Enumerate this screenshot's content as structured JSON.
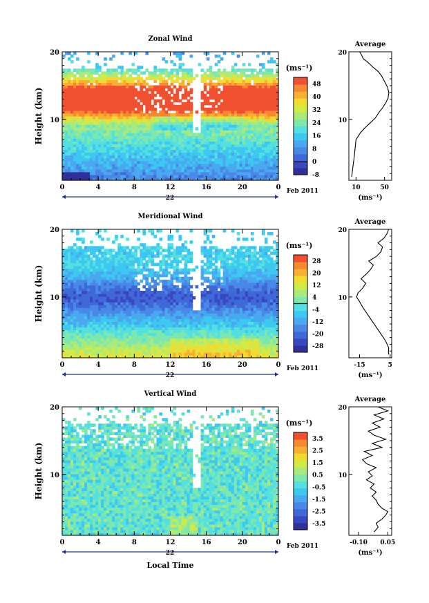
{
  "figure": {
    "date_label": "Feb 2011",
    "day_label": "22",
    "xlabel_bottom": "Local Time"
  },
  "chart_data": [
    {
      "type": "heatmap",
      "title": "Zonal Wind",
      "ylabel": "Height (km)",
      "xlim": [
        0,
        24
      ],
      "ylim": [
        1,
        20
      ],
      "x_ticks": [
        "0",
        "4",
        "8",
        "12",
        "16",
        "20",
        "0"
      ],
      "y_ticks": [
        "10",
        "20"
      ],
      "colorbar": {
        "unit": "(ms⁻¹)",
        "ticks": [
          "-8",
          "0",
          "8",
          "16",
          "24",
          "32",
          "40",
          "48"
        ],
        "range": [
          -8,
          52
        ],
        "zero_line": true
      },
      "profile": {
        "title": "Average",
        "xlabel": "(ms⁻¹)",
        "x_ticks": [
          "10",
          "50"
        ],
        "y_ticks": [
          "10",
          "20"
        ],
        "xlim": [
          0,
          60
        ],
        "points": [
          [
            4,
            1.5
          ],
          [
            5,
            2.5
          ],
          [
            7,
            4
          ],
          [
            8,
            5
          ],
          [
            9,
            6
          ],
          [
            10,
            7
          ],
          [
            13,
            7.5
          ],
          [
            16,
            8
          ],
          [
            22,
            8.7
          ],
          [
            30,
            9.5
          ],
          [
            37,
            10.2
          ],
          [
            42,
            11
          ],
          [
            47,
            11.7
          ],
          [
            52,
            12.5
          ],
          [
            55,
            13.2
          ],
          [
            56,
            14
          ],
          [
            54,
            14.8
          ],
          [
            50,
            15.6
          ],
          [
            46,
            16.4
          ],
          [
            41,
            17.1
          ],
          [
            33,
            17.8
          ],
          [
            26,
            18.5
          ],
          [
            20,
            19
          ],
          [
            18,
            19.5
          ],
          [
            15,
            20
          ]
        ]
      }
    },
    {
      "type": "heatmap",
      "title": "Meridional Wind",
      "ylabel": "Height (km)",
      "xlim": [
        0,
        24
      ],
      "ylim": [
        1,
        20
      ],
      "x_ticks": [
        "0",
        "4",
        "8",
        "12",
        "16",
        "20",
        "0"
      ],
      "y_ticks": [
        "10",
        "20"
      ],
      "colorbar": {
        "unit": "(ms⁻¹)",
        "ticks": [
          "-28",
          "-20",
          "-12",
          "-4",
          "4",
          "12",
          "20",
          "28"
        ],
        "range": [
          -32,
          32
        ],
        "zero_line": true
      },
      "profile": {
        "title": "Average",
        "xlabel": "(ms⁻¹)",
        "x_ticks": [
          "-15",
          "5"
        ],
        "y_ticks": [
          "10",
          "20"
        ],
        "xlim": [
          -22,
          6
        ],
        "points": [
          [
            4,
            1.5
          ],
          [
            4,
            2.5
          ],
          [
            2,
            3.5
          ],
          [
            -1,
            4.5
          ],
          [
            -4,
            5.5
          ],
          [
            -7,
            6.5
          ],
          [
            -10,
            7.5
          ],
          [
            -13,
            8.5
          ],
          [
            -15,
            9.3
          ],
          [
            -17,
            10
          ],
          [
            -16,
            10.6
          ],
          [
            -13,
            11.3
          ],
          [
            -11,
            12
          ],
          [
            -14,
            12.7
          ],
          [
            -11,
            13.3
          ],
          [
            -8,
            14
          ],
          [
            -6,
            14.7
          ],
          [
            -9,
            15.3
          ],
          [
            -4,
            16
          ],
          [
            -1,
            16.7
          ],
          [
            0,
            17.4
          ],
          [
            -3,
            18
          ],
          [
            1,
            18.7
          ],
          [
            3,
            19.4
          ],
          [
            4,
            20
          ]
        ]
      }
    },
    {
      "type": "heatmap",
      "title": "Vertical Wind",
      "ylabel": "Height (km)",
      "xlim": [
        0,
        24
      ],
      "ylim": [
        1,
        20
      ],
      "x_ticks": [
        "0",
        "4",
        "8",
        "12",
        "16",
        "20",
        "0"
      ],
      "y_ticks": [
        "10",
        "20"
      ],
      "colorbar": {
        "unit": "(ms⁻¹)",
        "ticks": [
          "-3.5",
          "-2.5",
          "-1.5",
          "-0.5",
          "0.5",
          "1.5",
          "2.5",
          "3.5"
        ],
        "range": [
          -4,
          4
        ],
        "zero_line": false
      },
      "profile": {
        "title": "Average",
        "xlabel": "(ms⁻¹)",
        "x_ticks": [
          "-0.10",
          "0.05"
        ],
        "y_ticks": [
          "10",
          "20"
        ],
        "xlim": [
          -0.15,
          0.07
        ],
        "points": [
          [
            -0.02,
            1.5
          ],
          [
            0.0,
            2.2
          ],
          [
            -0.01,
            2.8
          ],
          [
            0.02,
            3.4
          ],
          [
            0.04,
            4.0
          ],
          [
            0.05,
            4.5
          ],
          [
            0.02,
            5.0
          ],
          [
            0.0,
            5.6
          ],
          [
            -0.01,
            6.2
          ],
          [
            -0.03,
            6.8
          ],
          [
            -0.01,
            7.4
          ],
          [
            -0.04,
            8.0
          ],
          [
            -0.02,
            8.6
          ],
          [
            -0.06,
            9.2
          ],
          [
            -0.03,
            9.8
          ],
          [
            -0.05,
            10.4
          ],
          [
            -0.01,
            11.0
          ],
          [
            -0.06,
            11.6
          ],
          [
            -0.08,
            12.2
          ],
          [
            -0.03,
            12.8
          ],
          [
            -0.07,
            13.4
          ],
          [
            0.02,
            14.0
          ],
          [
            -0.03,
            14.6
          ],
          [
            0.04,
            15.2
          ],
          [
            -0.02,
            15.8
          ],
          [
            -0.05,
            16.4
          ],
          [
            0.01,
            17.0
          ],
          [
            -0.03,
            17.6
          ],
          [
            0.03,
            18.2
          ],
          [
            -0.02,
            18.8
          ],
          [
            0.05,
            19.4
          ],
          [
            0.0,
            20.0
          ]
        ]
      }
    }
  ]
}
